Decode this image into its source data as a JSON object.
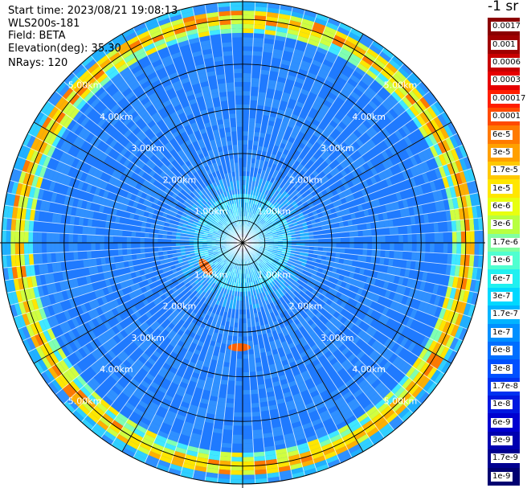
{
  "info": {
    "start_time": "Start time: 2023/08/21 19:08:13",
    "instrument": "WLS200s-181",
    "field": "Field: BETA",
    "elevation": "Elevation(deg): 35.30",
    "nrays": "NRays: 120"
  },
  "colorbar": {
    "unit": "-1 sr",
    "ticks": [
      "0.0017",
      "0.001",
      "0.0006",
      "0.0003",
      "0.00017",
      "0.0001",
      "6e-5",
      "3e-5",
      "1.7e-5",
      "1e-5",
      "6e-6",
      "3e-6",
      "1.7e-6",
      "1e-6",
      "6e-7",
      "3e-7",
      "1.7e-7",
      "1e-7",
      "6e-8",
      "3e-8",
      "1.7e-8",
      "1e-8",
      "6e-9",
      "3e-9",
      "1.7e-9",
      "1e-9"
    ],
    "colors": [
      "#8b0000",
      "#a00000",
      "#c80000",
      "#e60000",
      "#ff1e00",
      "#ff4a00",
      "#ff7a00",
      "#ffa000",
      "#ffc800",
      "#ffe600",
      "#e8ff10",
      "#b8ff40",
      "#80ffa0",
      "#50ffd0",
      "#20f0f0",
      "#00d8ff",
      "#00b4ff",
      "#0090ff",
      "#006eff",
      "#0050ff",
      "#0032f0",
      "#0018e0",
      "#0000d0",
      "#0000b0",
      "#000090",
      "#000070"
    ]
  },
  "range_rings": [
    "1.00km",
    "2.00km",
    "3.00km",
    "4.00km",
    "5.00km"
  ],
  "scan": {
    "max_range_km": 5.4,
    "nrays": 120,
    "background_color": "#1f7aff",
    "features": [
      {
        "range_km": 0.75,
        "color": "#30e0ff",
        "name": "near-field cyan ring"
      },
      {
        "range_km": 4.9,
        "color": "#ffd000",
        "name": "aerosol layer ring"
      },
      {
        "range_km": 5.1,
        "color": "#ff7a00",
        "name": "aerosol layer ring peak"
      }
    ]
  },
  "colors": {
    "grid": "#000000",
    "ring_label": "#ffffff"
  }
}
